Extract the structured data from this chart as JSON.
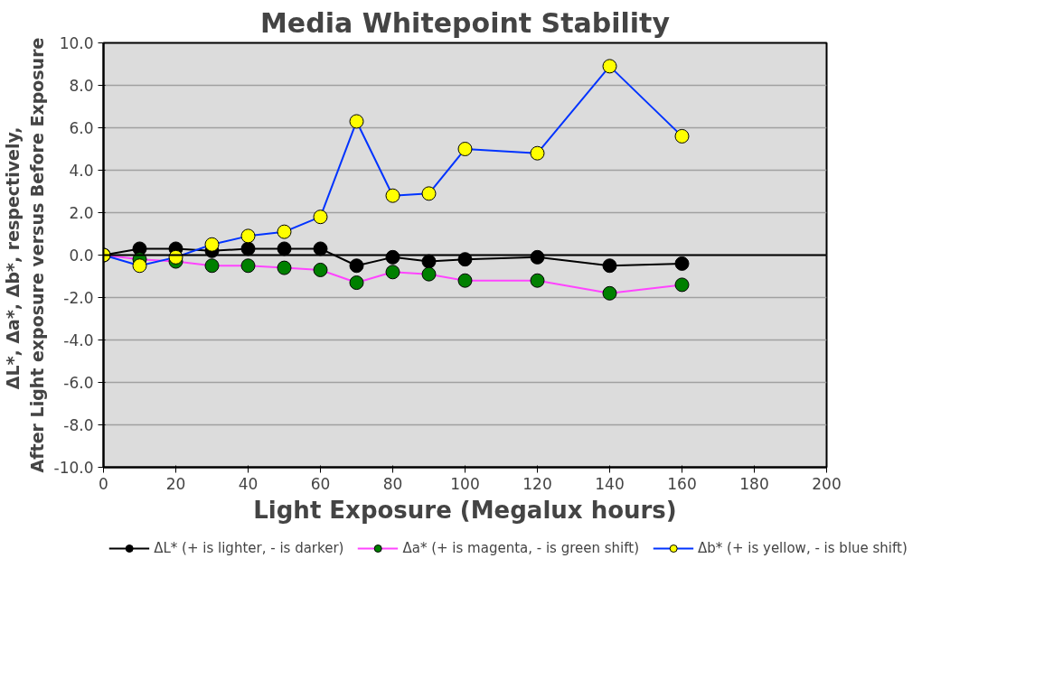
{
  "chart_data": {
    "type": "line",
    "title": "Media Whitepoint Stability",
    "xlabel": "Light Exposure (Megalux hours)",
    "ylabel": "ΔL*, Δa*, Δb*,  respectively,\nAfter Light exposure versus Before Exposure",
    "x": [
      0,
      10,
      20,
      30,
      40,
      50,
      60,
      70,
      80,
      90,
      100,
      120,
      140,
      160
    ],
    "series": [
      {
        "name": "ΔL* (+ is lighter, - is darker)",
        "color": "#000000",
        "colors": [
          "#000000",
          "#000000",
          "#000000",
          "#000000",
          "#000000",
          "#000000",
          "#000000",
          "#000000",
          "#000000",
          "#000000",
          "#000000",
          "#000000",
          "#000000",
          "#000000"
        ],
        "values": [
          0,
          0.3,
          0.3,
          0.2,
          0.3,
          0.3,
          0.3,
          -0.5,
          -0.1,
          -0.3,
          -0.2,
          -0.1,
          -0.5,
          -0.4
        ]
      },
      {
        "name": "Δa* (+ is magenta, - is green shift)",
        "color": "#ff44ff",
        "colors": [
          "#008000",
          "#008000",
          "#008000",
          "#008000",
          "#008000",
          "#008000",
          "#008000",
          "#008000",
          "#008000",
          "#008000",
          "#008000",
          "#008000",
          "#008000",
          "#008000"
        ],
        "values": [
          0,
          -0.2,
          -0.3,
          -0.5,
          -0.5,
          -0.6,
          -0.7,
          -1.3,
          -0.8,
          -0.9,
          -1.2,
          -1.2,
          -1.8,
          -1.4
        ]
      },
      {
        "name": "Δb* (+ is yellow, - is blue shift)",
        "color": "#0033ff",
        "colors": [
          "#ffff00",
          "#ffff00",
          "#ffff00",
          "#ffff00",
          "#ffff00",
          "#ffff00",
          "#ffff00",
          "#ffff00",
          "#ffff00",
          "#ffff00",
          "#ffff00",
          "#ffff00",
          "#ffff00",
          "#ffff00"
        ],
        "values": [
          0,
          -0.5,
          -0.1,
          0.5,
          0.9,
          1.1,
          1.8,
          6.3,
          2.8,
          2.9,
          5.0,
          4.8,
          8.9,
          5.6
        ]
      }
    ],
    "xlim": [
      0,
      200
    ],
    "xticks": [
      0,
      20,
      40,
      60,
      80,
      100,
      120,
      140,
      160,
      180,
      200
    ],
    "ylim": [
      -10,
      10
    ],
    "yticks": [
      {
        "value": -10,
        "label": "-10.0"
      },
      {
        "value": -8,
        "label": "-8.0"
      },
      {
        "value": -6,
        "label": "-6.0"
      },
      {
        "value": -4,
        "label": "-4.0"
      },
      {
        "value": -2,
        "label": "-2.0"
      },
      {
        "value": 0,
        "label": "0.0"
      },
      {
        "value": 2,
        "label": "2.0"
      },
      {
        "value": 4,
        "label": "4.0"
      },
      {
        "value": 6,
        "label": "6.0"
      },
      {
        "value": 8,
        "label": "8.0"
      },
      {
        "value": 10,
        "label": "10.0"
      }
    ],
    "grid": "y",
    "legend": "bottom",
    "marker": "circle",
    "line_style": "solid"
  }
}
